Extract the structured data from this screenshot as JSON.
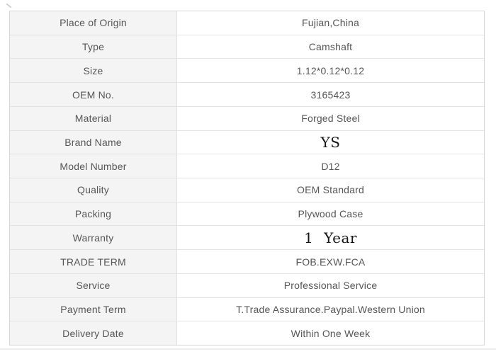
{
  "colors": {
    "page_background": "#ffffff",
    "label_cell_background": "#f4f4f4",
    "value_cell_background": "#ffffff",
    "grid_border": "#e4e4e4",
    "outer_border": "#d7d7d7",
    "text": "#565656",
    "emphasis_text": "#161616"
  },
  "table": {
    "rows": [
      {
        "label": "Place of Origin",
        "value": "Fujian,China"
      },
      {
        "label": "Type",
        "value": "Camshaft"
      },
      {
        "label": "Size",
        "value": "1.12*0.12*0.12"
      },
      {
        "label": "OEM No.",
        "value": "3165423"
      },
      {
        "label": "Material",
        "value": "Forged Steel"
      },
      {
        "label": "Brand Name",
        "value": "YS"
      },
      {
        "label": "Model Number",
        "value": "D12"
      },
      {
        "label": "Quality",
        "value": "OEM Standard"
      },
      {
        "label": "Packing",
        "value": "Plywood Case"
      },
      {
        "label": "Warranty",
        "value": "1 Year"
      },
      {
        "label": "TRADE TERM",
        "value": "FOB.EXW.FCA"
      },
      {
        "label": "Service",
        "value": "Professional Service"
      },
      {
        "label": "Payment Term",
        "value": "T.Trade Assurance.Paypal.Western Union"
      },
      {
        "label": "Delivery Date",
        "value": "Within One Week"
      }
    ]
  }
}
